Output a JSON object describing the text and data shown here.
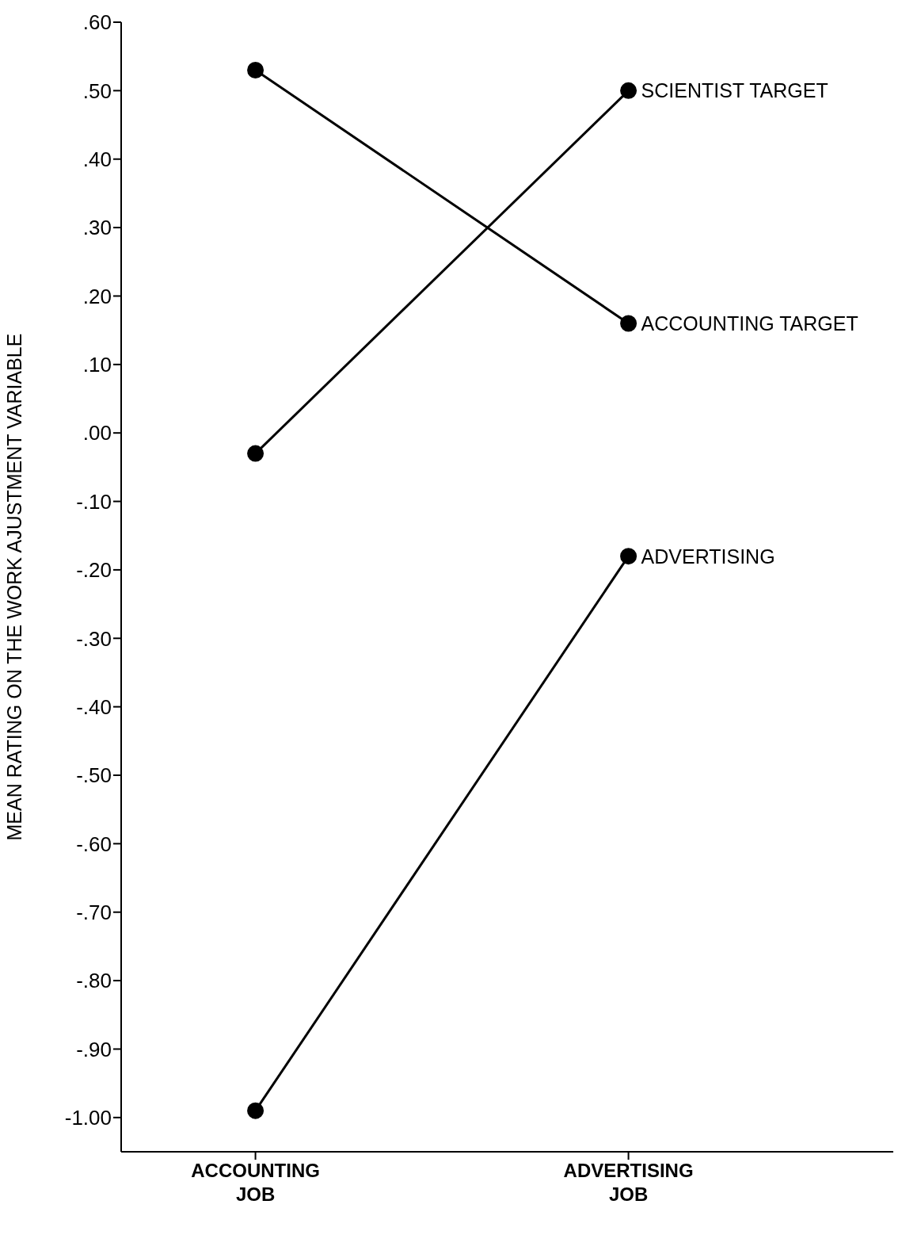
{
  "chart_data": {
    "type": "line",
    "ylabel": "MEAN RATING ON THE WORK AJUSTMENT VARIABLE",
    "categories": [
      "ACCOUNTING JOB",
      "ADVERTISING JOB"
    ],
    "series": [
      {
        "name": "SCIENTIST TARGET",
        "color": "#000000",
        "values": [
          -0.03,
          0.5
        ]
      },
      {
        "name": "ACCOUNTING TARGET",
        "color": "#000000",
        "values": [
          0.53,
          0.16
        ]
      },
      {
        "name": "ADVERTISING",
        "color": "#000000",
        "values": [
          -0.99,
          -0.18
        ]
      }
    ],
    "ylim": [
      -1.05,
      0.6
    ],
    "yticks": [
      {
        "value": 0.6,
        "label": ".60"
      },
      {
        "value": 0.5,
        "label": ".50"
      },
      {
        "value": 0.4,
        "label": ".40"
      },
      {
        "value": 0.3,
        "label": ".30"
      },
      {
        "value": 0.2,
        "label": ".20"
      },
      {
        "value": 0.1,
        "label": ".10"
      },
      {
        "value": 0,
        "label": ".00"
      },
      {
        "value": -0.1,
        "label": "-.10"
      },
      {
        "value": -0.2,
        "label": "-.20"
      },
      {
        "value": -0.3,
        "label": "-.30"
      },
      {
        "value": -0.4,
        "label": "-.40"
      },
      {
        "value": -0.5,
        "label": "-.50"
      },
      {
        "value": -0.6,
        "label": "-.60"
      },
      {
        "value": -0.7,
        "label": "-.70"
      },
      {
        "value": -0.8,
        "label": "-.80"
      },
      {
        "value": -0.9,
        "label": "-.90"
      },
      {
        "value": -1,
        "label": "-1.00"
      }
    ],
    "grid": false,
    "legend": false,
    "marker": "circle",
    "line_style": "solid"
  }
}
